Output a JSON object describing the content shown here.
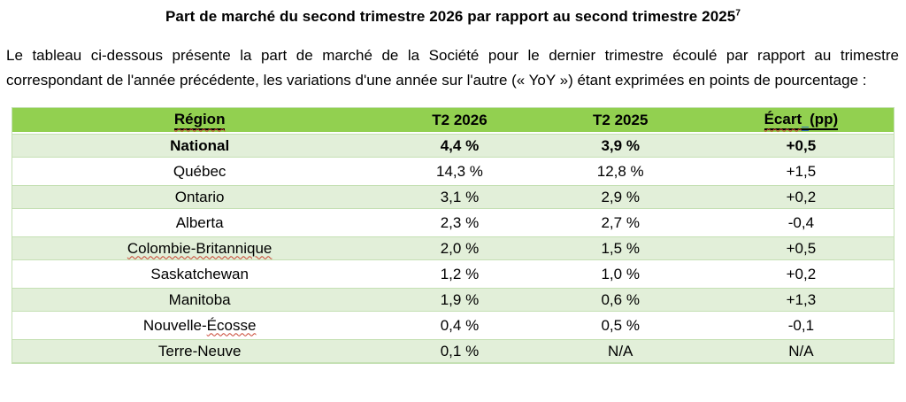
{
  "title": {
    "text": "Part de marché du second trimestre 2026 par rapport au second trimestre 2025",
    "footnote_ref": "7"
  },
  "intro": "Le tableau ci-dessous présente la part de marché de la Société pour le dernier trimestre écoulé par rapport au trimestre correspondant de l'année précédente, les variations d'une année sur l'autre (« YoY ») étant exprimées en points de pourcentage :",
  "colors": {
    "header_green": "#92D050",
    "band_green": "#E2EFD9",
    "border_green": "#C5E0B4",
    "spellcheck_red": "#C8432F",
    "grammar_blue": "#2E74B5"
  },
  "table": {
    "headers": [
      {
        "label": "Région",
        "underlined": true,
        "parts": [
          {
            "text": "Région",
            "wavy": true
          }
        ]
      },
      {
        "label": "T2 2026",
        "underlined": false,
        "parts": [
          {
            "text": "T2 2026"
          }
        ]
      },
      {
        "label": "T2 2025",
        "underlined": false,
        "parts": [
          {
            "text": "T2 2025"
          }
        ]
      },
      {
        "label": "Écart (pp)",
        "underlined": true,
        "parts": [
          {
            "text": "Écart",
            "wavy": true
          },
          {
            "text": " ",
            "grammar": true
          },
          {
            "text": "(pp)"
          }
        ]
      }
    ],
    "rows": [
      {
        "region_label": "National",
        "region_parts": [
          {
            "text": "National"
          }
        ],
        "values": [
          "4,4 %",
          "3,9 %",
          "+0,5"
        ],
        "bold": true,
        "shaded": true
      },
      {
        "region_label": "Québec",
        "region_parts": [
          {
            "text": "Québec"
          }
        ],
        "values": [
          "14,3 %",
          "12,8 %",
          "+1,5"
        ],
        "bold": false,
        "shaded": false
      },
      {
        "region_label": "Ontario",
        "region_parts": [
          {
            "text": "Ontario"
          }
        ],
        "values": [
          "3,1 %",
          "2,9 %",
          "+0,2"
        ],
        "bold": false,
        "shaded": true
      },
      {
        "region_label": "Alberta",
        "region_parts": [
          {
            "text": "Alberta"
          }
        ],
        "values": [
          "2,3 %",
          "2,7 %",
          "-0,4"
        ],
        "bold": false,
        "shaded": false
      },
      {
        "region_label": "Colombie-Britannique",
        "region_parts": [
          {
            "text": "Colombie-Britannique",
            "wavy": true
          }
        ],
        "values": [
          "2,0 %",
          "1,5 %",
          "+0,5"
        ],
        "bold": false,
        "shaded": true
      },
      {
        "region_label": "Saskatchewan",
        "region_parts": [
          {
            "text": "Saskatchewan"
          }
        ],
        "values": [
          "1,2 %",
          "1,0 %",
          "+0,2"
        ],
        "bold": false,
        "shaded": false
      },
      {
        "region_label": "Manitoba",
        "region_parts": [
          {
            "text": "Manitoba"
          }
        ],
        "values": [
          "1,9 %",
          "0,6 %",
          "+1,3"
        ],
        "bold": false,
        "shaded": true
      },
      {
        "region_label": "Nouvelle-Écosse",
        "region_parts": [
          {
            "text": "Nouvelle-"
          },
          {
            "text": "Écosse",
            "wavy": true
          }
        ],
        "values": [
          "0,4 %",
          "0,5 %",
          "-0,1"
        ],
        "bold": false,
        "shaded": false
      },
      {
        "region_label": "Terre-Neuve",
        "region_parts": [
          {
            "text": "Terre-Neuve"
          }
        ],
        "values": [
          "0,1 %",
          "N/A",
          "N/A"
        ],
        "bold": false,
        "shaded": true
      }
    ]
  }
}
